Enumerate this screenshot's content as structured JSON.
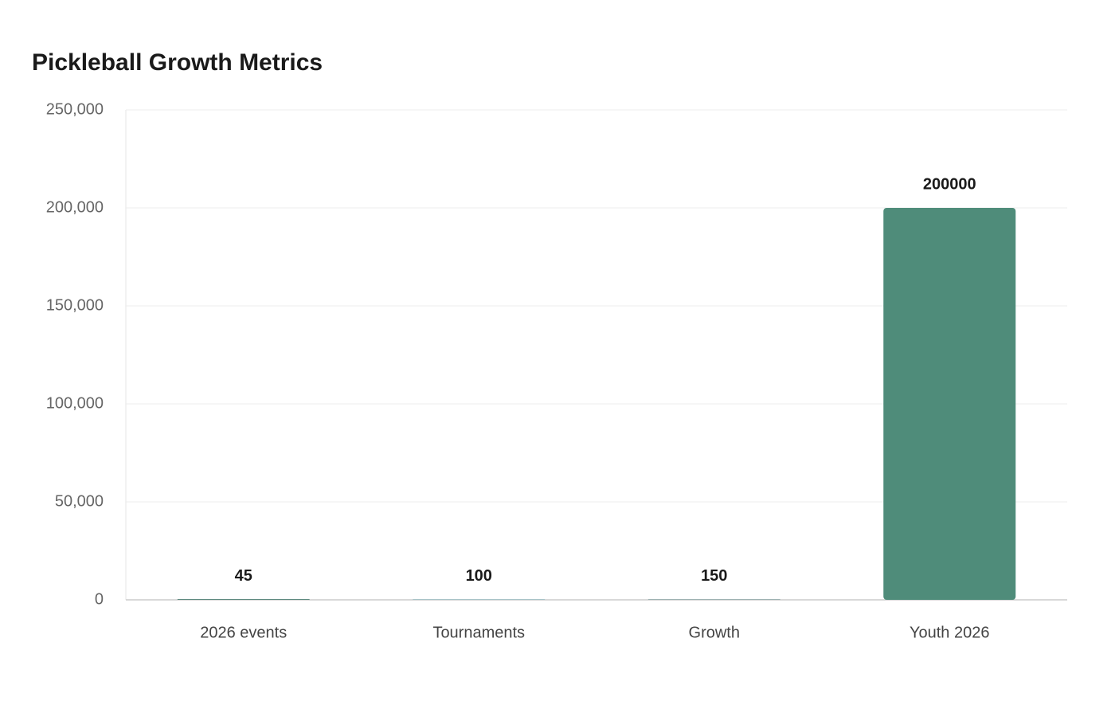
{
  "chart_data": {
    "type": "bar",
    "title": "Pickleball Growth Metrics",
    "categories": [
      "2026 events",
      "Tournaments",
      "Growth",
      "Youth 2026"
    ],
    "values": [
      45,
      100,
      150,
      200000
    ],
    "colors": [
      "#5f8a80",
      "#a9c4c8",
      "#9fb3b3",
      "#4f8c7a"
    ],
    "ylim": [
      0,
      250000
    ],
    "yticks": [
      0,
      {
        "value": 50000,
        "label": "50,000"
      },
      {
        "value": 100000,
        "label": "100,000"
      },
      {
        "value": 150000,
        "label": "150,000"
      },
      {
        "value": 200000,
        "label": "200,000"
      },
      {
        "value": 250000,
        "label": "250,000"
      }
    ],
    "grid": true
  }
}
